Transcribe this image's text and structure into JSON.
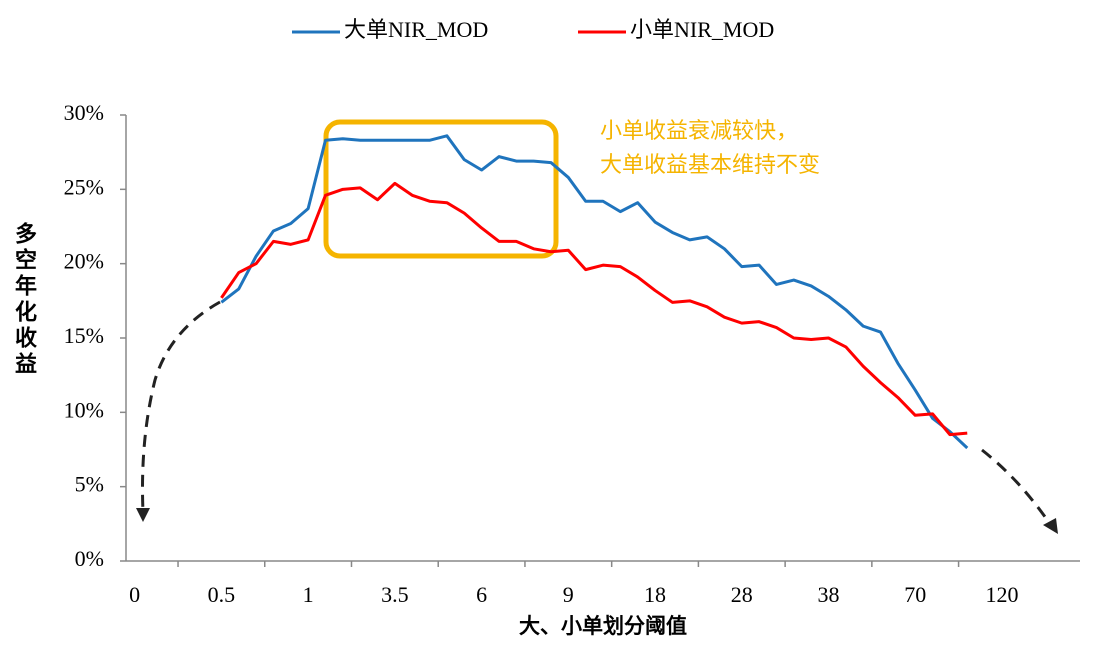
{
  "chart_data": {
    "type": "line",
    "x_label": "大、小单划分阈值",
    "y_label": "多空年化收益",
    "annotations": [
      "小单收益衰减较快，",
      "大单收益基本维持不变"
    ],
    "categories": [
      "0",
      null,
      null,
      null,
      null,
      "0.5",
      null,
      null,
      null,
      null,
      "1",
      null,
      null,
      null,
      null,
      "3.5",
      null,
      null,
      null,
      null,
      "6",
      null,
      null,
      null,
      null,
      "9",
      null,
      null,
      null,
      null,
      "18",
      null,
      null,
      null,
      null,
      "28",
      null,
      null,
      null,
      null,
      "38",
      null,
      null,
      null,
      null,
      "70",
      null,
      null,
      null,
      null,
      "120",
      null,
      null,
      null,
      null
    ],
    "series": [
      {
        "name": "大单NIR_MOD",
        "color": "#1f74bd",
        "values": [
          null,
          null,
          null,
          null,
          null,
          17.4,
          18.3,
          20.5,
          22.2,
          22.7,
          23.7,
          28.3,
          28.4,
          28.3,
          28.3,
          28.3,
          28.3,
          28.3,
          28.6,
          27.0,
          26.3,
          27.2,
          26.9,
          26.9,
          26.8,
          25.8,
          24.2,
          24.2,
          23.5,
          24.1,
          22.8,
          22.1,
          21.6,
          21.8,
          21.0,
          19.8,
          19.9,
          18.6,
          18.9,
          18.5,
          17.8,
          16.9,
          15.8,
          15.4,
          13.3,
          11.5,
          9.6,
          8.7,
          7.6,
          null,
          null,
          null,
          null,
          null,
          null
        ]
      },
      {
        "name": "小单NIR_MOD",
        "color": "#ff0000",
        "values": [
          null,
          null,
          null,
          null,
          null,
          17.7,
          19.4,
          20.0,
          21.5,
          21.3,
          21.6,
          24.6,
          25.0,
          25.1,
          24.3,
          25.4,
          24.6,
          24.2,
          24.1,
          23.4,
          22.4,
          21.5,
          21.5,
          21.0,
          20.8,
          20.9,
          19.6,
          19.9,
          19.8,
          19.1,
          18.2,
          17.4,
          17.5,
          17.1,
          16.4,
          16.0,
          16.1,
          15.7,
          15.0,
          14.9,
          15.0,
          14.4,
          13.1,
          12.0,
          11.0,
          9.8,
          9.9,
          8.5,
          8.6,
          null,
          null,
          null,
          null,
          null,
          null
        ]
      }
    ],
    "ylim": [
      0,
      30
    ],
    "yticks": [
      {
        "value": 0,
        "label": "0%"
      },
      {
        "value": 5,
        "label": "5%"
      },
      {
        "value": 10,
        "label": "10%"
      },
      {
        "value": 15,
        "label": "15%"
      },
      {
        "value": 20,
        "label": "20%"
      },
      {
        "value": 25,
        "label": "25%"
      },
      {
        "value": 30,
        "label": "30%"
      }
    ],
    "grid": false,
    "legend": "top"
  }
}
